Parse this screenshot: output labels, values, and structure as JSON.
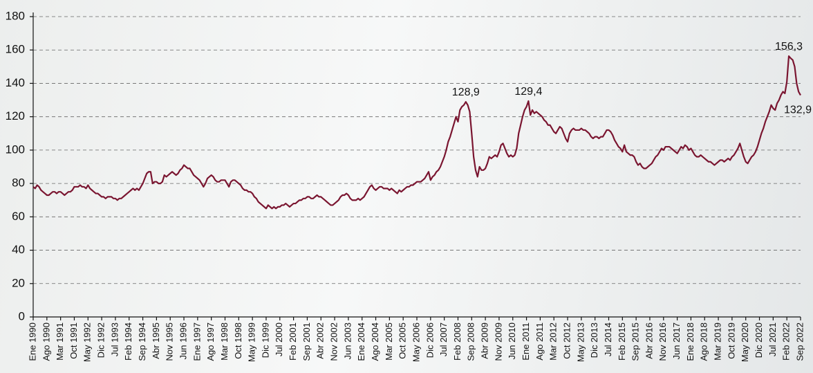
{
  "chart_data": {
    "type": "line",
    "color": "#7a1530",
    "grid": true,
    "ylim": [
      0,
      180
    ],
    "yticks": [
      0,
      20,
      40,
      60,
      80,
      100,
      120,
      140,
      160,
      180
    ],
    "categories": [
      "Ene 1990",
      null,
      null,
      null,
      null,
      null,
      null,
      "Ago 1990",
      null,
      null,
      null,
      null,
      null,
      null,
      "Mar 1991",
      null,
      null,
      null,
      null,
      null,
      null,
      "Oct 1991",
      null,
      null,
      null,
      null,
      null,
      null,
      "May 1992",
      null,
      null,
      null,
      null,
      null,
      null,
      "Dic 1992",
      null,
      null,
      null,
      null,
      null,
      null,
      "Jul 1993",
      null,
      null,
      null,
      null,
      null,
      null,
      "Feb 1994",
      null,
      null,
      null,
      null,
      null,
      null,
      "Sep 1994",
      null,
      null,
      null,
      null,
      null,
      null,
      "Abr 1995",
      null,
      null,
      null,
      null,
      null,
      null,
      "Nov 1995",
      null,
      null,
      null,
      null,
      null,
      null,
      "Jun 1996",
      null,
      null,
      null,
      null,
      null,
      null,
      "Ene 1997",
      null,
      null,
      null,
      null,
      null,
      null,
      "Ago 1997",
      null,
      null,
      null,
      null,
      null,
      null,
      "Mar 1998",
      null,
      null,
      null,
      null,
      null,
      null,
      "Oct 1998",
      null,
      null,
      null,
      null,
      null,
      null,
      "May 1999",
      null,
      null,
      null,
      null,
      null,
      null,
      "Dic 1999",
      null,
      null,
      null,
      null,
      null,
      null,
      "Jul 2000",
      null,
      null,
      null,
      null,
      null,
      null,
      "Feb 2001",
      null,
      null,
      null,
      null,
      null,
      null,
      "Sep 2001",
      null,
      null,
      null,
      null,
      null,
      null,
      "Abr 2002",
      null,
      null,
      null,
      null,
      null,
      null,
      "Nov 2002",
      null,
      null,
      null,
      null,
      null,
      null,
      "Jun 2003",
      null,
      null,
      null,
      null,
      null,
      null,
      "Ene 2004",
      null,
      null,
      null,
      null,
      null,
      null,
      "Ago 2004",
      null,
      null,
      null,
      null,
      null,
      null,
      "Mar 2005",
      null,
      null,
      null,
      null,
      null,
      null,
      "Oct 2005",
      null,
      null,
      null,
      null,
      null,
      null,
      "May 2006",
      null,
      null,
      null,
      null,
      null,
      null,
      "Dic 2006",
      null,
      null,
      null,
      null,
      null,
      null,
      "Jul 2007",
      null,
      null,
      null,
      null,
      null,
      null,
      "Feb 2008",
      null,
      null,
      null,
      null,
      null,
      null,
      "Sep 2008",
      null,
      null,
      null,
      null,
      null,
      null,
      "Abr 2009",
      null,
      null,
      null,
      null,
      null,
      null,
      "Nov 2009",
      null,
      null,
      null,
      null,
      null,
      null,
      "Jun 2010",
      null,
      null,
      null,
      null,
      null,
      null,
      "Ene 2011",
      null,
      null,
      null,
      null,
      null,
      null,
      "Ago 2011",
      null,
      null,
      null,
      null,
      null,
      null,
      "Mar 2012",
      null,
      null,
      null,
      null,
      null,
      null,
      "Oct 2012",
      null,
      null,
      null,
      null,
      null,
      null,
      "May 2013",
      null,
      null,
      null,
      null,
      null,
      null,
      "Dic 2013",
      null,
      null,
      null,
      null,
      null,
      null,
      "Jul 2014",
      null,
      null,
      null,
      null,
      null,
      null,
      "Feb 2015",
      null,
      null,
      null,
      null,
      null,
      null,
      "Sep 2015",
      null,
      null,
      null,
      null,
      null,
      null,
      "Abr 2016",
      null,
      null,
      null,
      null,
      null,
      null,
      "Nov 2016",
      null,
      null,
      null,
      null,
      null,
      null,
      "Jun 2017",
      null,
      null,
      null,
      null,
      null,
      null,
      "Ene 2018",
      null,
      null,
      null,
      null,
      null,
      null,
      "Ago 2018",
      null,
      null,
      null,
      null,
      null,
      null,
      "Mar 2019",
      null,
      null,
      null,
      null,
      null,
      null,
      "Oct 2019",
      null,
      null,
      null,
      null,
      null,
      null,
      "May 2020",
      null,
      null,
      null,
      null,
      null,
      null,
      "Dic 2020",
      null,
      null,
      null,
      null,
      null,
      null,
      "Jul 2021",
      null,
      null,
      null,
      null,
      null,
      null,
      "Feb 2022",
      null,
      null,
      null,
      null,
      null,
      null,
      "Sep 2022"
    ],
    "values": [
      78,
      77,
      79,
      78,
      76,
      75,
      74,
      73,
      73,
      74,
      75,
      75,
      74,
      75,
      75,
      74,
      73,
      74,
      75,
      75,
      76,
      78,
      78,
      78,
      79,
      78,
      78,
      77,
      79,
      77,
      76,
      75,
      74,
      74,
      73,
      72,
      72,
      71,
      72,
      72,
      72,
      71,
      71,
      70,
      71,
      71,
      72,
      73,
      74,
      75,
      76,
      77,
      76,
      77,
      76,
      78,
      80,
      83,
      86,
      87,
      87,
      80,
      81,
      81,
      80,
      80,
      81,
      85,
      84,
      85,
      86,
      87,
      86,
      85,
      86,
      88,
      89,
      91,
      90,
      89,
      89,
      87,
      85,
      84,
      83,
      82,
      80,
      78,
      80,
      83,
      84,
      85,
      84,
      82,
      81,
      81,
      82,
      82,
      82,
      80,
      78,
      81,
      82,
      82,
      81,
      80,
      79,
      77,
      76,
      76,
      75,
      75,
      74,
      72,
      71,
      69,
      68,
      67,
      66,
      65,
      67,
      66,
      65,
      66,
      65,
      66,
      66,
      67,
      67,
      68,
      67,
      66,
      67,
      68,
      68,
      69,
      70,
      70,
      71,
      71,
      72,
      72,
      71,
      71,
      72,
      73,
      72,
      72,
      71,
      70,
      69,
      68,
      67,
      67,
      68,
      69,
      70,
      72,
      73,
      73,
      74,
      73,
      71,
      70,
      70,
      70,
      71,
      70,
      71,
      72,
      74,
      76,
      78,
      79,
      77,
      76,
      77,
      78,
      78,
      77,
      77,
      77,
      76,
      77,
      76,
      75,
      74,
      76,
      75,
      76,
      77,
      78,
      78,
      79,
      79,
      80,
      81,
      81,
      81,
      82,
      83,
      85,
      87,
      82,
      84,
      85,
      87,
      88,
      90,
      93,
      96,
      100,
      105,
      108,
      112,
      116,
      120,
      117,
      124,
      126,
      127,
      128.9,
      127,
      123,
      110,
      96,
      88,
      84,
      90,
      88,
      88,
      89,
      92,
      96,
      95,
      96,
      97,
      96,
      99,
      103,
      104,
      101,
      98,
      96,
      97,
      96,
      97,
      101,
      110,
      115,
      120,
      124,
      126,
      129.4,
      121,
      124,
      122,
      123,
      122,
      121,
      120,
      118,
      117,
      115,
      115,
      113,
      111,
      110,
      112,
      114,
      113,
      110,
      107,
      105,
      110,
      112,
      113,
      112,
      112,
      112,
      113,
      112,
      112,
      111,
      110,
      108,
      107,
      108,
      108,
      107,
      108,
      108,
      110,
      112,
      112,
      111,
      109,
      106,
      104,
      102,
      101,
      99,
      103,
      99,
      98,
      97,
      97,
      96,
      93,
      91,
      92,
      90,
      89,
      89,
      90,
      91,
      92,
      94,
      96,
      97,
      99,
      101,
      100,
      102,
      102,
      102,
      101,
      100,
      99,
      98,
      100,
      102,
      101,
      103,
      102,
      100,
      101,
      99,
      97,
      96,
      96,
      97,
      96,
      95,
      94,
      93,
      93,
      92,
      91,
      92,
      93,
      94,
      94,
      93,
      94,
      95,
      94,
      96,
      97,
      99,
      101,
      104,
      100,
      96,
      93,
      92,
      94,
      96,
      97,
      99,
      102,
      106,
      110,
      113,
      117,
      120,
      123,
      127,
      125,
      124,
      128,
      130,
      133,
      135,
      134,
      141,
      156.3,
      155,
      154,
      150,
      140,
      135,
      132.9
    ],
    "value_labels": [
      null,
      null,
      null,
      null,
      null,
      null,
      null,
      null,
      null,
      null,
      null,
      null,
      null,
      null,
      null,
      null,
      null,
      null,
      null,
      null,
      null,
      null,
      null,
      null,
      null,
      null,
      null,
      null,
      null,
      null,
      null,
      null,
      null,
      null,
      null,
      null,
      null,
      null,
      null,
      null,
      null,
      null,
      null,
      null,
      null,
      null,
      null,
      null,
      null,
      null,
      null,
      null,
      null,
      null,
      null,
      null,
      null,
      null,
      null,
      null,
      null,
      null,
      null,
      null,
      null,
      null,
      null,
      null,
      null,
      null,
      null,
      null,
      null,
      null,
      null,
      null,
      null,
      null,
      null,
      null,
      null,
      null,
      null,
      null,
      null,
      null,
      null,
      null,
      null,
      null,
      null,
      null,
      null,
      null,
      null,
      null,
      null,
      null,
      null,
      null,
      null,
      null,
      null,
      null,
      null,
      null,
      null,
      null,
      null,
      null,
      null,
      null,
      null,
      null,
      null,
      null,
      null,
      null,
      null,
      null,
      null,
      null,
      null,
      null,
      null,
      null,
      null,
      null,
      null,
      null,
      null,
      null,
      null,
      null,
      null,
      null,
      null,
      null,
      null,
      null,
      null,
      null,
      null,
      null,
      null,
      null,
      null,
      null,
      null,
      null,
      null,
      null,
      null,
      null,
      null,
      null,
      null,
      null,
      null,
      null,
      null,
      null,
      null,
      null,
      null,
      null,
      null,
      null,
      null,
      null,
      null,
      null,
      null,
      null,
      null,
      null,
      null,
      null,
      null,
      null,
      null,
      null,
      null,
      null,
      null,
      null,
      null,
      null,
      null,
      null,
      null,
      null,
      null,
      null,
      null,
      null,
      null,
      null,
      null,
      null,
      null,
      null,
      null,
      null,
      null,
      null,
      null,
      null,
      null,
      null,
      null,
      null,
      null,
      null,
      null,
      null,
      null,
      null,
      null,
      null,
      null,
      "128,9",
      null,
      null,
      null,
      null,
      null,
      null,
      null,
      null,
      null,
      null,
      null,
      null,
      null,
      null,
      null,
      null,
      null,
      null,
      null,
      null,
      null,
      null,
      null,
      null,
      null,
      null,
      null,
      null,
      null,
      null,
      null,
      "129,4",
      null,
      null,
      null,
      null,
      null,
      null,
      null,
      null,
      null,
      null,
      null,
      null,
      null,
      null,
      null,
      null,
      null,
      null,
      null,
      null,
      null,
      null,
      null,
      null,
      null,
      null,
      null,
      null,
      null,
      null,
      null,
      null,
      null,
      null,
      null,
      null,
      null,
      null,
      null,
      null,
      null,
      null,
      null,
      null,
      null,
      null,
      null,
      null,
      null,
      null,
      null,
      null,
      null,
      null,
      null,
      null,
      null,
      null,
      null,
      null,
      null,
      null,
      null,
      null,
      null,
      null,
      null,
      null,
      null,
      null,
      null,
      null,
      null,
      null,
      null,
      null,
      null,
      null,
      null,
      null,
      null,
      null,
      null,
      null,
      null,
      null,
      null,
      null,
      null,
      null,
      null,
      null,
      null,
      null,
      null,
      null,
      null,
      null,
      null,
      null,
      null,
      null,
      null,
      null,
      null,
      null,
      null,
      null,
      null,
      null,
      null,
      null,
      null,
      null,
      null,
      null,
      null,
      null,
      null,
      null,
      null,
      null,
      null,
      null,
      null,
      null,
      null,
      null,
      null,
      null,
      null,
      null,
      "156,3",
      null,
      null,
      null,
      null,
      null,
      "132,9"
    ]
  }
}
